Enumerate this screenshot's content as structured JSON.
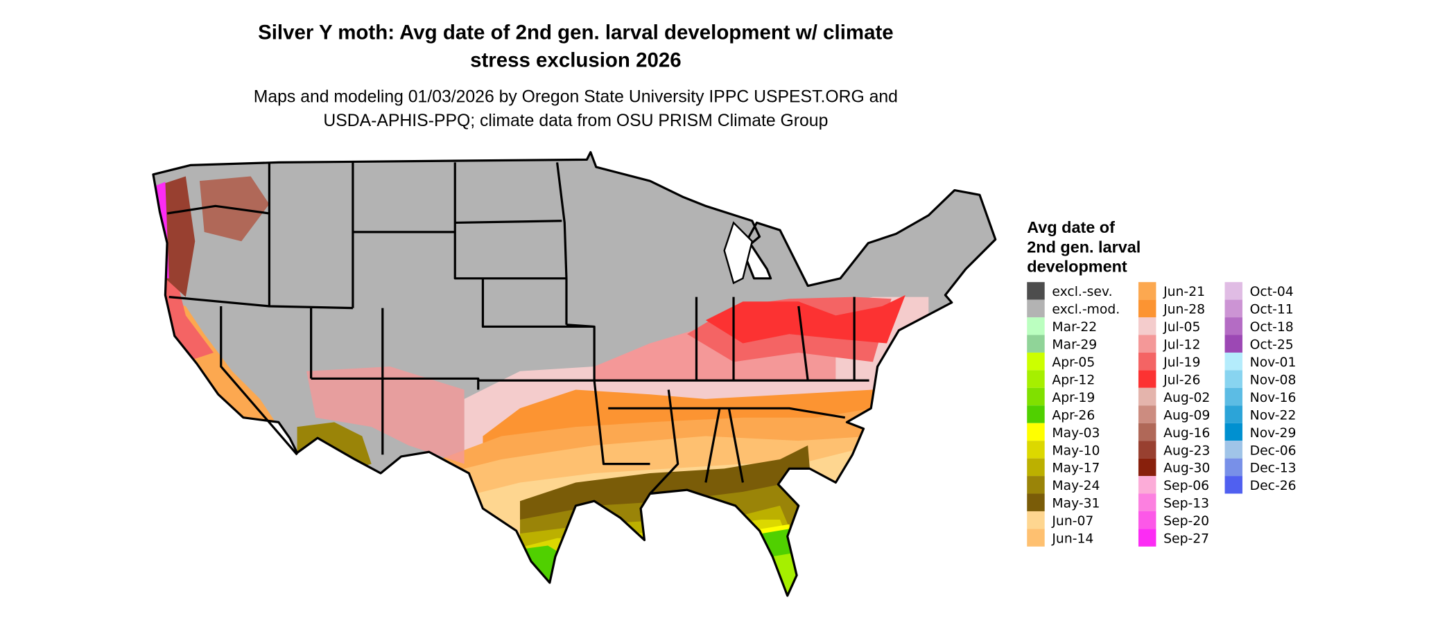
{
  "title": {
    "line1": "Silver Y moth: Avg date of 2nd gen. larval development w/ climate",
    "line2": "stress exclusion 2026"
  },
  "subtitle": {
    "line1": "Maps and modeling 01/03/2026 by Oregon State University IPPC USPEST.ORG and",
    "line2": "USDA-APHIS-PPQ; climate data from OSU PRISM Climate Group"
  },
  "legend": {
    "title_lines": [
      "Avg date of",
      "2nd gen. larval",
      "development"
    ],
    "columns": [
      [
        {
          "label": "excl.-sev.",
          "color": "#4d4d4d"
        },
        {
          "label": "excl.-mod.",
          "color": "#b3b3b3"
        },
        {
          "label": "Mar-22",
          "color": "#bbffc0"
        },
        {
          "label": "Mar-29",
          "color": "#90d498"
        },
        {
          "label": "Apr-05",
          "color": "#ccff00"
        },
        {
          "label": "Apr-12",
          "color": "#a6ef00"
        },
        {
          "label": "Apr-19",
          "color": "#80e000"
        },
        {
          "label": "Apr-26",
          "color": "#50d000"
        },
        {
          "label": "May-03",
          "color": "#ffff00"
        },
        {
          "label": "May-10",
          "color": "#dcd800"
        },
        {
          "label": "May-17",
          "color": "#bcb000"
        },
        {
          "label": "May-24",
          "color": "#9a8408"
        },
        {
          "label": "May-31",
          "color": "#7a5c08"
        },
        {
          "label": "Jun-07",
          "color": "#fed690"
        },
        {
          "label": "Jun-14",
          "color": "#fec070"
        }
      ],
      [
        {
          "label": "Jun-21",
          "color": "#fca850"
        },
        {
          "label": "Jun-28",
          "color": "#fc9432"
        },
        {
          "label": "Jul-05",
          "color": "#f4cccc"
        },
        {
          "label": "Jul-12",
          "color": "#f49898"
        },
        {
          "label": "Jul-19",
          "color": "#f46464"
        },
        {
          "label": "Jul-26",
          "color": "#fc3232"
        },
        {
          "label": "Aug-02",
          "color": "#e4b4ac"
        },
        {
          "label": "Aug-09",
          "color": "#cc8c80"
        },
        {
          "label": "Aug-16",
          "color": "#b06858"
        },
        {
          "label": "Aug-23",
          "color": "#984030"
        },
        {
          "label": "Aug-30",
          "color": "#88200c"
        },
        {
          "label": "Sep-06",
          "color": "#fcacd8"
        },
        {
          "label": "Sep-13",
          "color": "#fc80e0"
        },
        {
          "label": "Sep-20",
          "color": "#fc58e8"
        },
        {
          "label": "Sep-27",
          "color": "#fc2cf4"
        }
      ],
      [
        {
          "label": "Oct-04",
          "color": "#e0bce4"
        },
        {
          "label": "Oct-11",
          "color": "#cc94d4"
        },
        {
          "label": "Oct-18",
          "color": "#b46cc4"
        },
        {
          "label": "Oct-25",
          "color": "#9c48b4"
        },
        {
          "label": "Nov-01",
          "color": "#b4ecfc"
        },
        {
          "label": "Nov-08",
          "color": "#88d4f0"
        },
        {
          "label": "Nov-16",
          "color": "#5cbce4"
        },
        {
          "label": "Nov-22",
          "color": "#2ca4d8"
        },
        {
          "label": "Nov-29",
          "color": "#0090d0"
        },
        {
          "label": "Dec-06",
          "color": "#a0c4e8"
        },
        {
          "label": "Dec-13",
          "color": "#7890e8"
        },
        {
          "label": "Dec-26",
          "color": "#5060f0"
        }
      ]
    ]
  }
}
